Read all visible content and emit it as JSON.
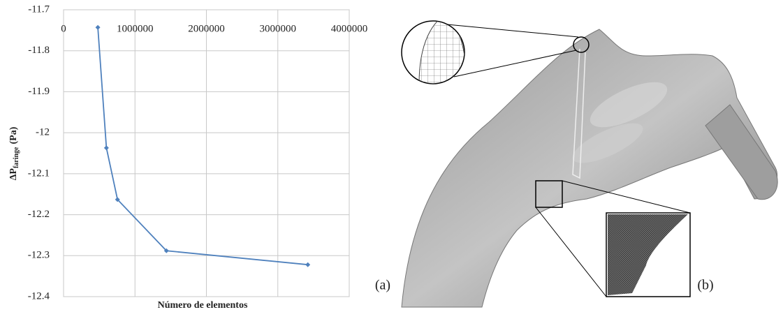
{
  "chart_data": {
    "type": "line",
    "x_label": "Número de elementos",
    "y_label": {
      "main": "ΔP",
      "sub": "faringe",
      "unit": "(Pa)"
    },
    "series": [
      {
        "color": "#4f81bd",
        "x": [
          480000,
          600000,
          755000,
          1440000,
          3420000
        ],
        "values": [
          -11.743,
          -12.037,
          -12.163,
          -12.288,
          -12.322
        ]
      }
    ],
    "xlim": [
      0,
      4000000
    ],
    "xticks": [
      0,
      1000000,
      2000000,
      3000000,
      4000000
    ],
    "ylim": [
      -12.4,
      -11.7
    ],
    "yticks": [
      -11.7,
      -11.8,
      -11.9,
      -12,
      -12.1,
      -12.2,
      -12.3,
      -12.4
    ],
    "grid": true,
    "x_axis_position": "top"
  },
  "panel_labels": [
    "(a)",
    "(b)"
  ]
}
